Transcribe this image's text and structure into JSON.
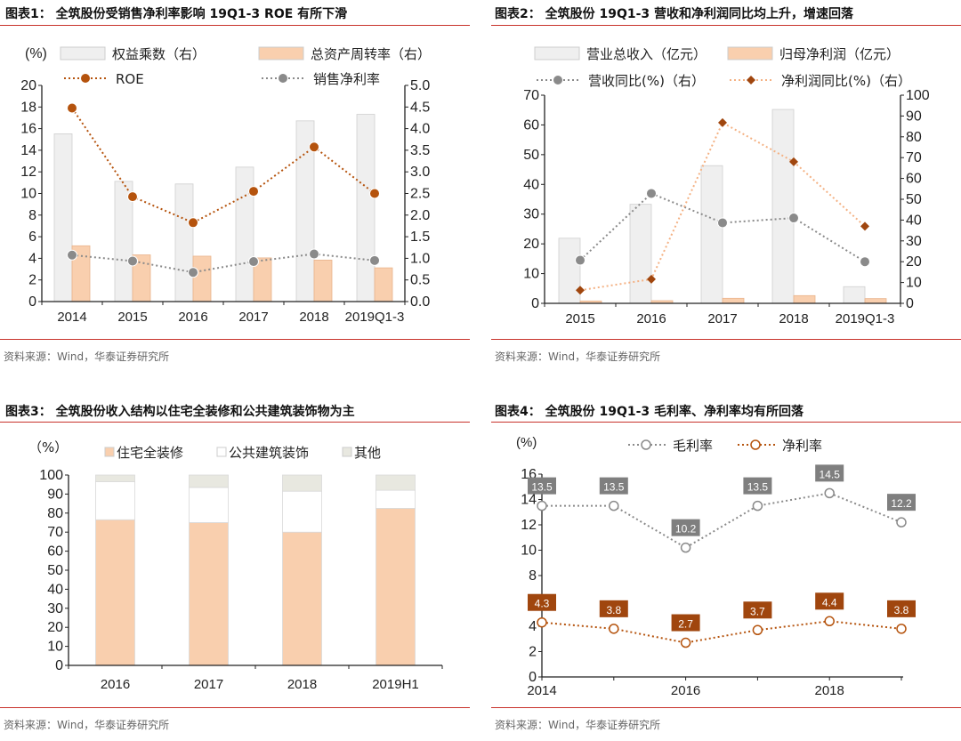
{
  "panels": [
    {
      "title": "图表1：  全筑股份受销售净利率影响 19Q1-3 ROE 有所下滑",
      "source": "资料来源：Wind，华泰证券研究所"
    },
    {
      "title": "图表2：  全筑股份 19Q1-3 营收和净利润同比均上升，增速回落",
      "source": "资料来源：Wind，华泰证券研究所"
    },
    {
      "title": "图表3：  全筑股份收入结构以住宅全装修和公共建筑装饰物为主",
      "source": "资料来源：Wind，华泰证券研究所"
    },
    {
      "title": "图表4：  全筑股份 19Q1-3 毛利率、净利率均有所回落",
      "source": "资料来源：Wind，华泰证券研究所"
    }
  ],
  "chart_data": [
    {
      "type": "bar+line",
      "unit_label": "(%)",
      "categories": [
        "2014",
        "2015",
        "2016",
        "2017",
        "2018",
        "2019Q1-3"
      ],
      "ylim_left": [
        0,
        20
      ],
      "ylim_right": [
        0,
        5
      ],
      "yticks_left": [
        "0",
        "2",
        "4",
        "6",
        "8",
        "10",
        "12",
        "14",
        "16",
        "18",
        "20"
      ],
      "yticks_right": [
        "0.0",
        "0.5",
        "1.0",
        "1.5",
        "2.0",
        "2.5",
        "3.0",
        "3.5",
        "4.0",
        "4.5",
        "5.0"
      ],
      "grid": false,
      "legend_position": "top",
      "series": [
        {
          "name": "权益乘数（右）",
          "type": "bar",
          "axis": "right",
          "color": "#efefef",
          "values": [
            3.88,
            2.78,
            2.72,
            3.11,
            4.18,
            4.33
          ]
        },
        {
          "name": "总资产周转率（右）",
          "type": "bar",
          "axis": "right",
          "color": "#f9cfae",
          "values": [
            1.29,
            1.08,
            1.05,
            1.01,
            0.96,
            0.78
          ]
        },
        {
          "name": "ROE",
          "type": "line",
          "axis": "left",
          "color": "#b5530d",
          "values": [
            17.9,
            9.7,
            7.3,
            10.2,
            14.3,
            10.0
          ]
        },
        {
          "name": "销售净利率",
          "type": "line",
          "axis": "left",
          "color": "#8a8a8a",
          "values": [
            4.3,
            3.75,
            2.7,
            3.7,
            4.4,
            3.8
          ]
        }
      ]
    },
    {
      "type": "bar+line",
      "categories": [
        "2015",
        "2016",
        "2017",
        "2018",
        "2019Q1-3"
      ],
      "ylim_left": [
        0,
        70
      ],
      "ylim_right": [
        0,
        100
      ],
      "yticks_left": [
        "0",
        "10",
        "20",
        "30",
        "40",
        "50",
        "60",
        "70"
      ],
      "yticks_right": [
        "0",
        "10",
        "20",
        "30",
        "40",
        "50",
        "60",
        "70",
        "80",
        "90",
        "100"
      ],
      "grid": false,
      "legend_position": "top",
      "series": [
        {
          "name": "营业总收入（亿元）",
          "type": "bar",
          "axis": "left",
          "color": "#efefef",
          "values": [
            21.9,
            33.3,
            46.3,
            65.2,
            5.6
          ]
        },
        {
          "name": "归母净利润（亿元）",
          "type": "bar",
          "axis": "left",
          "color": "#f9cfae",
          "values": [
            0.8,
            0.9,
            1.7,
            2.6,
            1.6
          ]
        },
        {
          "name": "营收同比(%)（右）",
          "type": "line",
          "axis": "right",
          "color": "#8a8a8a",
          "values": [
            20.7,
            52.8,
            38.7,
            41.0,
            20.0
          ]
        },
        {
          "name": "净利润同比(%)（右）",
          "type": "line",
          "axis": "right",
          "color": "#f4b183",
          "marker_color": "#a0460e",
          "values": [
            6.3,
            11.6,
            86.8,
            68.0,
            37.0
          ]
        }
      ]
    },
    {
      "type": "stacked-bar",
      "unit_label": "（%）",
      "categories": [
        "2016",
        "2017",
        "2018",
        "2019H1"
      ],
      "ylim": [
        0,
        100
      ],
      "yticks": [
        "0",
        "10",
        "20",
        "30",
        "40",
        "50",
        "60",
        "70",
        "80",
        "90",
        "100"
      ],
      "grid": false,
      "legend_position": "top",
      "series": [
        {
          "name": "住宅全装修",
          "color": "#f9cfae",
          "values": [
            76.5,
            75.0,
            70.0,
            82.5
          ]
        },
        {
          "name": "公共建筑装饰",
          "color": "#ffffff",
          "values": [
            20.0,
            18.5,
            21.5,
            9.5
          ]
        },
        {
          "name": "其他",
          "color": "#e8e8e0",
          "values": [
            3.5,
            6.5,
            8.5,
            8.0
          ]
        }
      ]
    },
    {
      "type": "line",
      "unit_label": "(%)",
      "x": [
        2014,
        2015,
        2016,
        2017,
        2018,
        2019
      ],
      "xticks": [
        "2014",
        "2016",
        "2018"
      ],
      "xlim": [
        2014,
        2019
      ],
      "ylim": [
        0,
        16
      ],
      "yticks": [
        "0",
        "2",
        "4",
        "6",
        "8",
        "10",
        "12",
        "14",
        "16"
      ],
      "grid": false,
      "legend_position": "top",
      "series": [
        {
          "name": "毛利率",
          "color": "#8a8a8a",
          "label_bg": "#7f7f7f",
          "values": [
            13.5,
            13.5,
            10.2,
            13.5,
            14.5,
            12.2
          ],
          "labels": [
            "13.5",
            "13.5",
            "10.2",
            "13.5",
            "14.5",
            "12.2"
          ]
        },
        {
          "name": "净利率",
          "color": "#b5530d",
          "label_bg": "#a0460e",
          "values": [
            4.3,
            3.8,
            2.7,
            3.7,
            4.4,
            3.8
          ],
          "labels": [
            "4.3",
            "3.8",
            "2.7",
            "3.7",
            "4.4",
            "3.8"
          ]
        }
      ]
    }
  ]
}
